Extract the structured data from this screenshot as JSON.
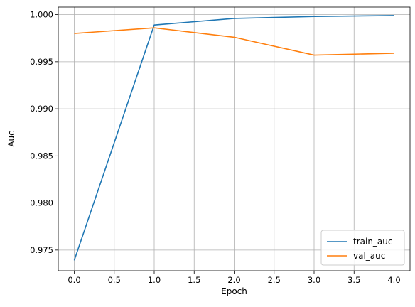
{
  "chart_data": {
    "type": "line",
    "xlabel": "Epoch",
    "ylabel": "Auc",
    "x": [
      0,
      1,
      2,
      3,
      4
    ],
    "xlim": [
      -0.2,
      4.2
    ],
    "ylim": [
      0.9728,
      1.0008
    ],
    "xticks": [
      0.0,
      0.5,
      1.0,
      1.5,
      2.0,
      2.5,
      3.0,
      3.5,
      4.0
    ],
    "xtick_labels": [
      "0.0",
      "0.5",
      "1.0",
      "1.5",
      "2.0",
      "2.5",
      "3.0",
      "3.5",
      "4.0"
    ],
    "yticks": [
      0.975,
      0.98,
      0.985,
      0.99,
      0.995,
      1.0
    ],
    "ytick_labels": [
      "0.975",
      "0.980",
      "0.985",
      "0.990",
      "0.995",
      "1.000"
    ],
    "grid": true,
    "legend_position": "lower right",
    "series": [
      {
        "name": "train_auc",
        "color": "#1f77b4",
        "values": [
          0.9739,
          0.9989,
          0.9996,
          0.9998,
          0.9999
        ]
      },
      {
        "name": "val_auc",
        "color": "#ff7f0e",
        "values": [
          0.998,
          0.9986,
          0.9976,
          0.9957,
          0.9959
        ]
      }
    ]
  }
}
